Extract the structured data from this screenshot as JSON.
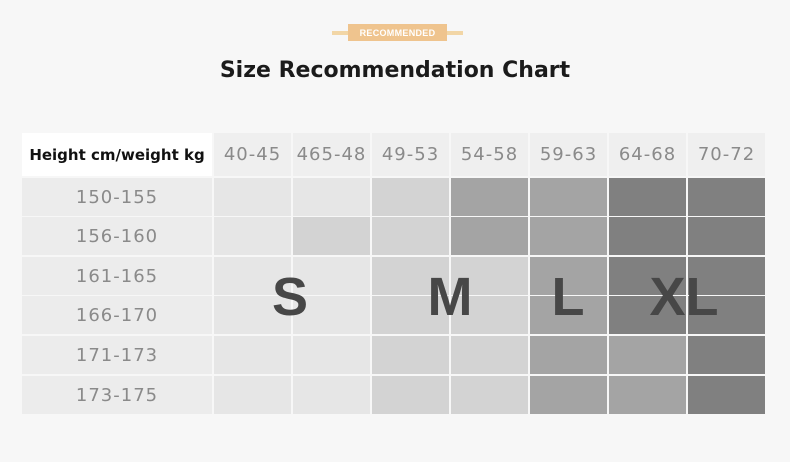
{
  "badge": "RECOMMENDED",
  "title": "Size Recommendation Chart",
  "table": {
    "header_label": "Height cm/weight kg",
    "weight_ranges": [
      "40-45",
      "465-48",
      "49-53",
      "54-58",
      "59-63",
      "64-68",
      "70-72"
    ],
    "height_ranges": [
      "150-155",
      "156-160",
      "161-165",
      "166-170",
      "171-173",
      "173-175"
    ],
    "size_grid": [
      [
        "S",
        "S",
        "M",
        "L",
        "L",
        "XL",
        "XL"
      ],
      [
        "S",
        "M",
        "M",
        "L",
        "L",
        "XL",
        "XL"
      ],
      [
        "S",
        "S",
        "M",
        "M",
        "L",
        "XL",
        "XL"
      ],
      [
        "S",
        "S",
        "M",
        "M",
        "L",
        "XL",
        "XL"
      ],
      [
        "S",
        "S",
        "M",
        "M",
        "L",
        "L",
        "XL"
      ],
      [
        "S",
        "S",
        "M",
        "M",
        "L",
        "L",
        "XL"
      ]
    ],
    "size_labels": [
      "S",
      "M",
      "L",
      "XL"
    ]
  },
  "colors": {
    "S": "#e6e6e6",
    "M": "#d3d3d3",
    "L": "#a4a4a4",
    "XL": "#808080",
    "accent": "#efc48e"
  }
}
